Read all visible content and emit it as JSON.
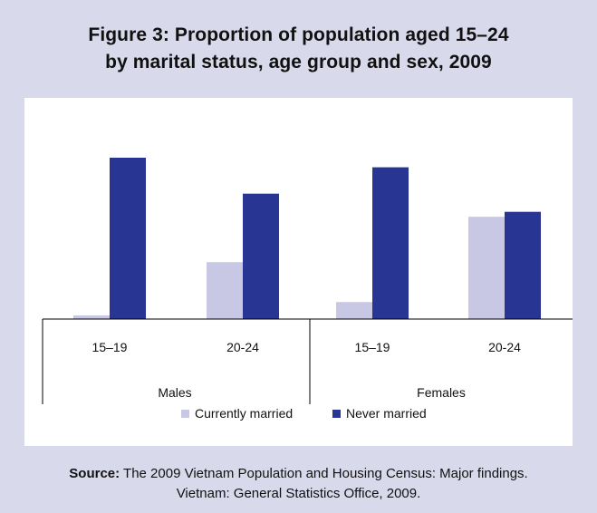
{
  "title_line1": "Figure 3: Proportion of population aged 15–24",
  "title_line2": "by marital status, age group and sex, 2009",
  "source_label": "Source:",
  "source_line1": "The 2009 Vietnam Population and Housing Census: Major findings.",
  "source_line2": "Vietnam: General Statistics Office, 2009.",
  "chart_data": {
    "type": "bar",
    "title": "Figure 3: Proportion of population aged 15–24 by marital status, age group and sex, 2009",
    "groups": [
      "Males",
      "Females"
    ],
    "categories": [
      "15–19",
      "20-24",
      "15–19",
      "20-24"
    ],
    "category_group": [
      "Males",
      "Males",
      "Females",
      "Females"
    ],
    "series": [
      {
        "name": "Currently married",
        "color": "#c8c8e4",
        "values": [
          2.2,
          34.5,
          10.3,
          62.0
        ]
      },
      {
        "name": "Never married",
        "color": "#283593",
        "values": [
          97.8,
          76.0,
          92.0,
          65.0
        ]
      }
    ],
    "ylim": [
      0,
      100
    ],
    "legend_position": "bottom",
    "grid": false,
    "axis_labels_shown": false
  }
}
